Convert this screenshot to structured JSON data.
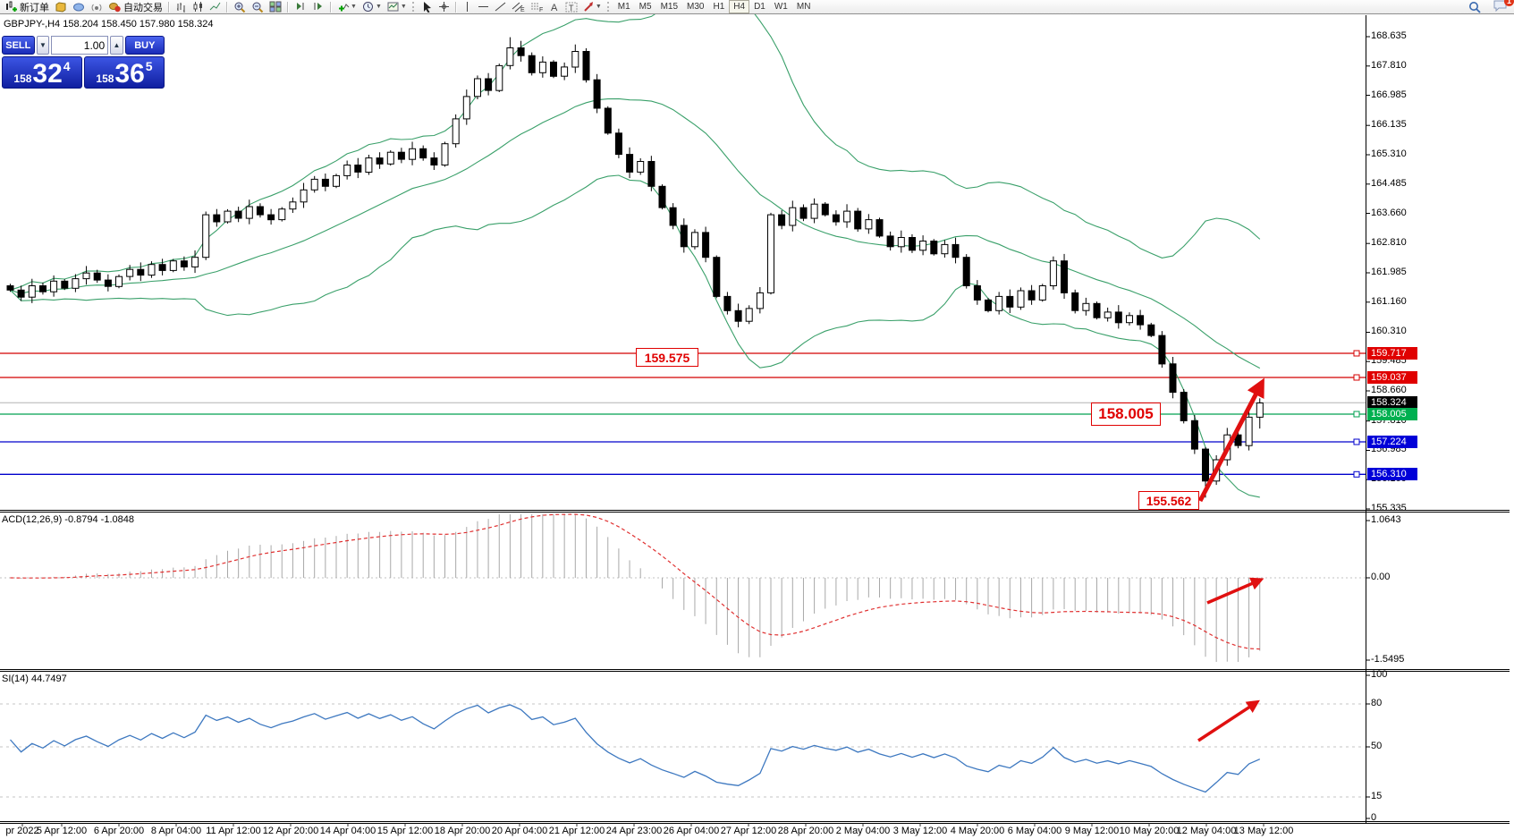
{
  "toolbar": {
    "new_order_label": "新订单",
    "autotrading_label": "自动交易",
    "timeframes": [
      "M1",
      "M5",
      "M15",
      "M30",
      "H1",
      "H4",
      "D1",
      "W1",
      "MN"
    ],
    "active_timeframe": "H4",
    "notification_count": "1"
  },
  "chart_header": "GBPJPY-,H4  158.204 158.450 157.980 158.324",
  "trade_panel": {
    "sell_label": "SELL",
    "buy_label": "BUY",
    "volume": "1.00",
    "sell_price": {
      "small": "158",
      "big": "32",
      "sup": "4"
    },
    "buy_price": {
      "small": "158",
      "big": "36",
      "sup": "5"
    }
  },
  "macd_panel": {
    "label": "ACD(12,26,9) -0.8794 -1.0848",
    "axis": [
      "1.0643",
      "0.00",
      "-1.5495"
    ]
  },
  "rsi_panel": {
    "label": "SI(14) 44.7497",
    "axis": [
      "100",
      "80",
      "50",
      "15",
      "0"
    ]
  },
  "annotations": [
    "159.575",
    "158.005",
    "155.562"
  ],
  "chart_data": {
    "type": "candlestick",
    "title": "GBPJPY- H4",
    "ohlc": {
      "open": 158.204,
      "high": 158.45,
      "low": 157.98,
      "close": 158.324
    },
    "y_ticks": [
      168.635,
      167.81,
      166.985,
      166.135,
      165.31,
      164.485,
      163.66,
      162.81,
      161.985,
      161.16,
      160.31,
      159.485,
      158.66,
      157.81,
      156.985,
      156.16,
      155.335
    ],
    "x_labels": [
      "pr 2022",
      "5 Apr 12:00",
      "6 Apr 20:00",
      "8 Apr 04:00",
      "11 Apr 12:00",
      "12 Apr 20:00",
      "14 Apr 04:00",
      "15 Apr 12:00",
      "18 Apr 20:00",
      "20 Apr 04:00",
      "21 Apr 12:00",
      "24 Apr 23:00",
      "26 Apr 04:00",
      "27 Apr 12:00",
      "28 Apr 20:00",
      "2 May 04:00",
      "3 May 12:00",
      "4 May 20:00",
      "6 May 04:00",
      "9 May 12:00",
      "10 May 20:00",
      "12 May 04:00",
      "13 May 12:00"
    ],
    "closes": [
      161.5,
      161.3,
      161.62,
      161.45,
      161.75,
      161.55,
      161.82,
      161.98,
      161.78,
      161.6,
      161.88,
      162.08,
      161.92,
      162.22,
      162.05,
      162.32,
      162.15,
      162.42,
      163.62,
      163.42,
      163.72,
      163.52,
      163.85,
      163.62,
      163.48,
      163.78,
      163.98,
      164.32,
      164.62,
      164.42,
      164.72,
      165.02,
      164.82,
      165.22,
      165.05,
      165.38,
      165.18,
      165.48,
      165.22,
      165.02,
      165.62,
      166.32,
      166.95,
      167.45,
      167.12,
      167.82,
      168.32,
      168.1,
      167.62,
      167.92,
      167.52,
      167.78,
      168.22,
      167.42,
      166.62,
      165.92,
      165.32,
      164.82,
      165.12,
      164.42,
      163.82,
      163.32,
      162.72,
      163.12,
      162.42,
      161.32,
      160.92,
      160.62,
      160.98,
      161.42,
      163.62,
      163.32,
      163.82,
      163.52,
      163.92,
      163.62,
      163.42,
      163.72,
      163.22,
      163.48,
      163.02,
      162.72,
      162.98,
      162.62,
      162.88,
      162.52,
      162.78,
      162.42,
      161.62,
      161.22,
      160.92,
      161.32,
      161.02,
      161.48,
      161.22,
      161.62,
      162.32,
      161.42,
      160.92,
      161.12,
      160.72,
      160.88,
      160.58,
      160.78,
      160.52,
      160.22,
      159.42,
      158.62,
      157.82,
      157.02,
      156.12,
      156.72,
      157.42,
      157.12,
      157.92,
      158.32
    ],
    "swing_high": 168.62,
    "swing_low": 155.562,
    "horizontal_lines": [
      {
        "price": 159.717,
        "label": "159.717",
        "color": "#d40000",
        "badge": "#e00000"
      },
      {
        "price": 159.037,
        "label": "159.037",
        "color": "#d40000",
        "badge": "#e00000"
      },
      {
        "price": 158.324,
        "label": "158.324",
        "color": "#b4b4b4",
        "badge": "#000000"
      },
      {
        "price": 158.005,
        "label": "158.005",
        "color": "#00a050",
        "badge": "#00b050"
      },
      {
        "price": 157.224,
        "label": "157.224",
        "color": "#0000cc",
        "badge": "#0000d8"
      },
      {
        "price": 156.31,
        "label": "156.310",
        "color": "#0000cc",
        "badge": "#0000d8"
      }
    ],
    "indicators": {
      "bollinger": {
        "period": 20,
        "deviation": 2,
        "color": "#3aa06a"
      },
      "macd": {
        "fast": 12,
        "slow": 26,
        "signal": 9,
        "value": -0.8794,
        "signal_value": -1.0848,
        "axis_max": 1.0643,
        "axis_min": -1.5495,
        "hist_color": "#a8a8a8",
        "signal_color": "#e03030"
      },
      "rsi": {
        "period": 14,
        "value": 44.7497,
        "levels": [
          80,
          50,
          15
        ],
        "color": "#3d78c0"
      }
    },
    "candle_colors": {
      "up": "#ffffff",
      "down": "#000000"
    },
    "trend_arrow_color": "#e01010"
  }
}
